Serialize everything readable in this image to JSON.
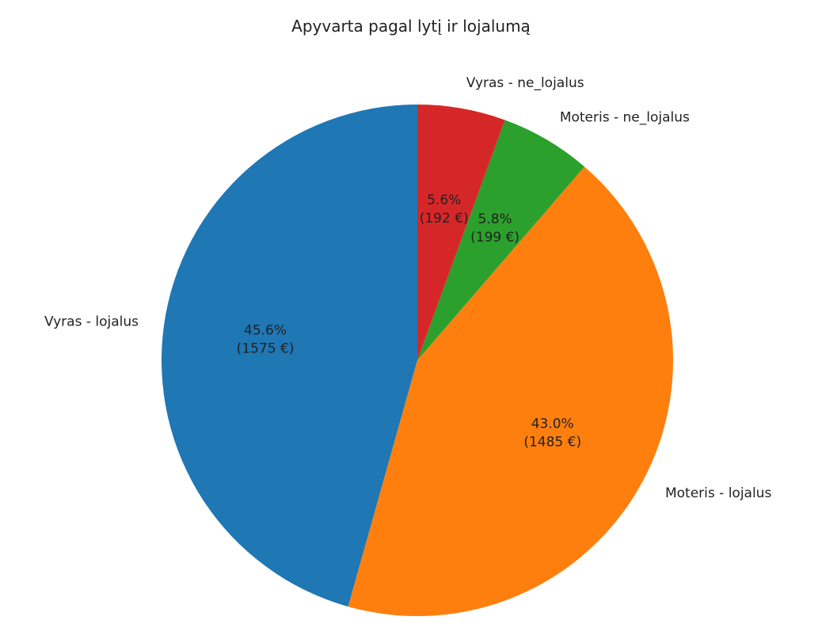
{
  "chart_data": {
    "type": "pie",
    "title": "Apyvarta pagal lytį ir lojalumą",
    "labels": [
      "Vyras - lojalus",
      "Moteris - lojalus",
      "Moteris - ne_lojalus",
      "Vyras - ne_lojalus"
    ],
    "values": [
      1575,
      1485,
      199,
      192
    ],
    "percent_labels": [
      "45.6%",
      "43.0%",
      "5.8%",
      "5.6%"
    ],
    "value_labels": [
      "(1575 €)",
      "(1485 €)",
      "(199 €)",
      "(192 €)"
    ],
    "colors": [
      "#1f77b4",
      "#ff7f0e",
      "#2ca02c",
      "#d62728"
    ],
    "start_angle": 90,
    "direction": "counterclockwise",
    "legend": "none"
  }
}
